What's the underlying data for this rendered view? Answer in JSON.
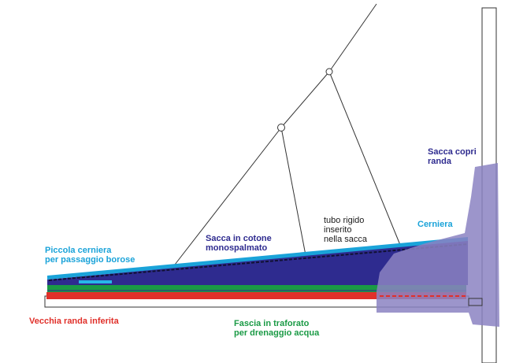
{
  "labels": {
    "piccola_cerniera": [
      "Piccola cerniera",
      "per passaggio borose"
    ],
    "sacca_cotone": [
      "Sacca in cotone",
      "monospalmato"
    ],
    "tubo_rigido": [
      "tubo rigido",
      "inserito",
      "nella sacca"
    ],
    "cerniera": [
      "Cerniera"
    ],
    "sacca_copri": [
      "Sacca copri",
      "randa"
    ],
    "vecchia_randa": [
      "Vecchia randa inferita"
    ],
    "fascia": [
      "Fascia in traforato",
      "per drenaggio acqua"
    ]
  },
  "colors": {
    "cyan": "#1aa3d9",
    "navy": "#2e2b8f",
    "green": "#1a9a45",
    "red": "#e0302a",
    "lavender": "#8b82c2",
    "black": "#1a1a1a"
  }
}
